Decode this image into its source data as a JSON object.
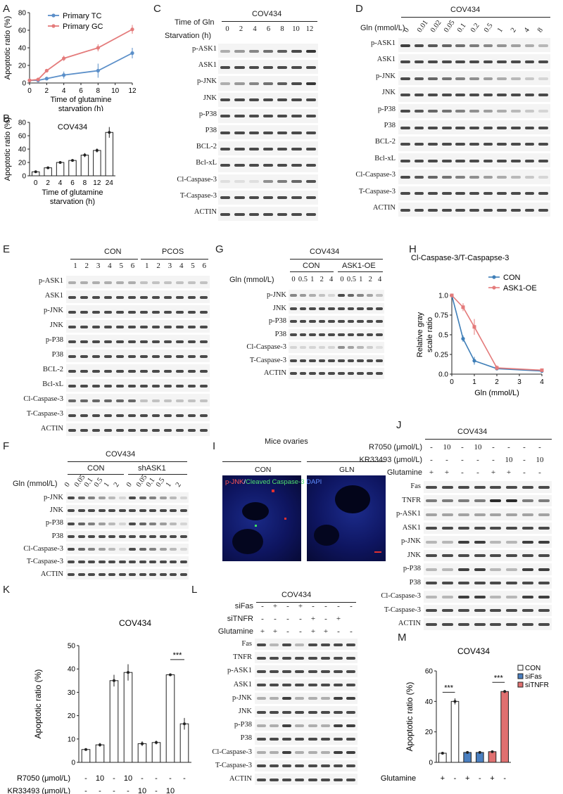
{
  "panels": {
    "A": "A",
    "B": "B",
    "C": "C",
    "D": "D",
    "E": "E",
    "F": "F",
    "G": "G",
    "H": "H",
    "I": "I",
    "J": "J",
    "K": "K",
    "L": "L",
    "M": "M"
  },
  "chart_data": [
    {
      "panel": "A",
      "type": "line",
      "xlabel": "Time of glutamine starvation (h)",
      "ylabel": "Apoptotic ratio (%)",
      "xlim": [
        0,
        12
      ],
      "ylim": [
        0,
        80
      ],
      "xticks": [
        0,
        2,
        4,
        6,
        8,
        10,
        12
      ],
      "yticks": [
        0,
        20,
        40,
        60,
        80
      ],
      "x": [
        0,
        1,
        2,
        4,
        8,
        12
      ],
      "series": [
        {
          "name": "Primary TC",
          "color": "#5b8fc9",
          "values": [
            3,
            3,
            5,
            9,
            14,
            34
          ],
          "err": [
            2,
            2,
            2,
            4,
            8,
            6
          ]
        },
        {
          "name": "Primary GC",
          "color": "#e47b7b",
          "values": [
            3,
            4,
            14,
            28,
            40,
            61
          ],
          "err": [
            2,
            2,
            2,
            3,
            4,
            5
          ]
        }
      ]
    },
    {
      "panel": "B",
      "type": "bar",
      "title": "COV434",
      "xlabel": "Time of glutamine starvation (h)",
      "ylabel": "Apoptotic ratio (%)",
      "categories": [
        "0",
        "2",
        "4",
        "6",
        "8",
        "12",
        "24"
      ],
      "values": [
        6,
        12,
        20,
        23,
        31,
        38,
        65
      ],
      "err": [
        1,
        1,
        1,
        1,
        3,
        3,
        8
      ],
      "ylim": [
        0,
        80
      ],
      "yticks": [
        0,
        20,
        40,
        60,
        80
      ]
    },
    {
      "panel": "H",
      "type": "line",
      "title": "Cl-Caspase-3/T-Caspapse-3",
      "xlabel": "Gln (mmol/L)",
      "ylabel": "Relative gray scale ratio",
      "x": [
        0,
        0.5,
        1,
        2,
        4
      ],
      "xlim": [
        0,
        4
      ],
      "ylim": [
        0,
        1.0
      ],
      "xticks": [
        0,
        1,
        2,
        3,
        4
      ],
      "yticks": [
        "0.0",
        "0.25",
        "0.5",
        "0.75",
        "1.0"
      ],
      "series": [
        {
          "name": "CON",
          "color": "#3f7fb8",
          "values": [
            1.0,
            0.45,
            0.17,
            0.07,
            0.04
          ],
          "err": [
            0,
            0.04,
            0.05,
            0.02,
            0.01
          ]
        },
        {
          "name": "ASK1-OE",
          "color": "#e47b7b",
          "values": [
            1.0,
            0.85,
            0.6,
            0.08,
            0.05
          ],
          "err": [
            0,
            0.05,
            0.1,
            0.03,
            0.01
          ]
        }
      ]
    },
    {
      "panel": "K",
      "type": "bar",
      "title": "COV434",
      "ylabel": "Apoptotic ratio (%)",
      "values": [
        5.5,
        7.5,
        35,
        38.5,
        8,
        8.5,
        37.5,
        16.5
      ],
      "err": [
        0.5,
        0.8,
        2.5,
        3.5,
        1,
        0.8,
        0.6,
        2.5
      ],
      "ylim": [
        0,
        50
      ],
      "yticks": [
        0,
        10,
        20,
        30,
        40,
        50
      ],
      "annotation": "***",
      "conditions": {
        "R7050 (μmol/L)": [
          "-",
          "10",
          "-",
          "10",
          "-",
          "-",
          "-",
          "-"
        ],
        "KR33493 (μmol/L)": [
          "-",
          "-",
          "-",
          "-",
          "10",
          "-",
          "10",
          ""
        ],
        "Glutamine": [
          "+",
          "+",
          "-",
          "-",
          "+",
          "+",
          "-",
          "-"
        ]
      }
    },
    {
      "panel": "M",
      "type": "bar",
      "title": "COV434",
      "ylabel": "Apoptotic ratio (%)",
      "values": [
        6,
        40,
        6.5,
        6.5,
        7,
        46.5
      ],
      "err": [
        0.3,
        2,
        0.3,
        0.3,
        0.3,
        1
      ],
      "series_of_bars": [
        "CON",
        "CON",
        "siFas",
        "siFas",
        "siTNFR",
        "siTNFR"
      ],
      "ylim": [
        0,
        60
      ],
      "yticks": [
        0,
        20,
        40,
        60
      ],
      "legend": [
        {
          "name": "CON",
          "color": "#ffffff"
        },
        {
          "name": "siFas",
          "color": "#4a7fc0"
        },
        {
          "name": "siTNFR",
          "color": "#e07070"
        }
      ],
      "annotation": "***",
      "glutamine": [
        "+",
        "-",
        "+",
        "-",
        "+",
        "-"
      ]
    }
  ],
  "blots": {
    "C": {
      "title": "COV434",
      "header1": "Time of Gln",
      "header2": "Starvation (h)",
      "lanes": [
        "0",
        "2",
        "4",
        "6",
        "8",
        "10",
        "12"
      ],
      "rows": [
        "p-ASK1",
        "ASK1",
        "p-JNK",
        "JNK",
        "p-P38",
        "P38",
        "BCL-2",
        "Bcl-xL",
        "Cl-Caspase-3",
        "T-Caspase-3",
        "ACTIN"
      ]
    },
    "D": {
      "title": "COV434",
      "header": "Gln (mmol/L)",
      "lanes": [
        "0",
        "0.01",
        "0.02",
        "0.05",
        "0.1",
        "0.2",
        "0.5",
        "1",
        "2",
        "4",
        "8"
      ],
      "rows": [
        "p-ASK1",
        "ASK1",
        "p-JNK",
        "JNK",
        "p-P38",
        "P38",
        "BCL-2",
        "Bcl-xL",
        "Cl-Caspase-3",
        "T-Caspase-3",
        "ACTIN"
      ]
    },
    "E": {
      "groups": [
        "CON",
        "PCOS"
      ],
      "lanes": [
        "1",
        "2",
        "3",
        "4",
        "5",
        "6",
        "1",
        "2",
        "3",
        "4",
        "5",
        "6"
      ],
      "rows": [
        "p-ASK1",
        "ASK1",
        "p-JNK",
        "JNK",
        "p-P38",
        "P38",
        "BCL-2",
        "Bcl-xL",
        "Cl-Caspase-3",
        "T-Caspase-3",
        "ACTIN"
      ]
    },
    "G": {
      "title": "COV434",
      "groups": [
        "CON",
        "ASK1-OE"
      ],
      "header": "Gln (mmol/L)",
      "lanes": [
        "0",
        "0.5",
        "1",
        "2",
        "4",
        "0",
        "0.5",
        "1",
        "2",
        "4"
      ],
      "rows": [
        "p-JNK",
        "JNK",
        "p-P38",
        "P38",
        "Cl-Caspase-3",
        "T-Caspase-3",
        "ACTIN"
      ]
    },
    "F": {
      "title": "COV434",
      "groups": [
        "CON",
        "shASK1"
      ],
      "header": "Gln (mmol/L)",
      "lanes": [
        "0",
        "0.05",
        "0.1",
        "0.5",
        "1",
        "2",
        "0",
        "0.05",
        "0.1",
        "0.5",
        "1",
        "2"
      ],
      "rows": [
        "p-JNK",
        "JNK",
        "p-P38",
        "P38",
        "Cl-Caspase-3",
        "T-Caspase-3",
        "ACTIN"
      ]
    },
    "I": {
      "title": "Mice ovaries",
      "groups": [
        "CON",
        "GLN"
      ],
      "stain_parts": [
        "p-JNK",
        "/",
        "Cleaved Caspase-3",
        "/",
        "DAPI"
      ]
    },
    "J": {
      "title": "COV434",
      "cond_labels": [
        "R7050 (μmol/L)",
        "KR33493 (μmol/L)",
        "Glutamine"
      ],
      "cond_values": [
        [
          "-",
          "10",
          "-",
          "10",
          "-",
          "-",
          "-",
          "-"
        ],
        [
          "-",
          "-",
          "-",
          "-",
          "-",
          "10",
          "-",
          "10"
        ],
        [
          "+",
          "+",
          "-",
          "-",
          "+",
          "+",
          "-",
          "-"
        ]
      ],
      "rows": [
        "Fas",
        "TNFR",
        "p-ASK1",
        "ASK1",
        "p-JNK",
        "JNK",
        "p-P38",
        "P38",
        "Cl-Caspase-3",
        "T-Caspase-3",
        "ACTIN"
      ]
    },
    "L": {
      "title": "COV434",
      "cond_labels": [
        "siFas",
        "siTNFR",
        "Glutamine"
      ],
      "cond_values": [
        [
          "-",
          "+",
          "-",
          "+",
          "-",
          "-",
          "-",
          "-"
        ],
        [
          "-",
          "-",
          "-",
          "-",
          "+",
          "-",
          "+",
          ""
        ],
        [
          "+",
          "+",
          "-",
          "-",
          "+",
          "+",
          "-",
          "-"
        ]
      ],
      "rows": [
        "Fas",
        "TNFR",
        "p-ASK1",
        "ASK1",
        "p-JNK",
        "JNK",
        "p-P38",
        "P38",
        "Cl-Caspase-3",
        "T-Caspase-3",
        "ACTIN"
      ]
    }
  }
}
